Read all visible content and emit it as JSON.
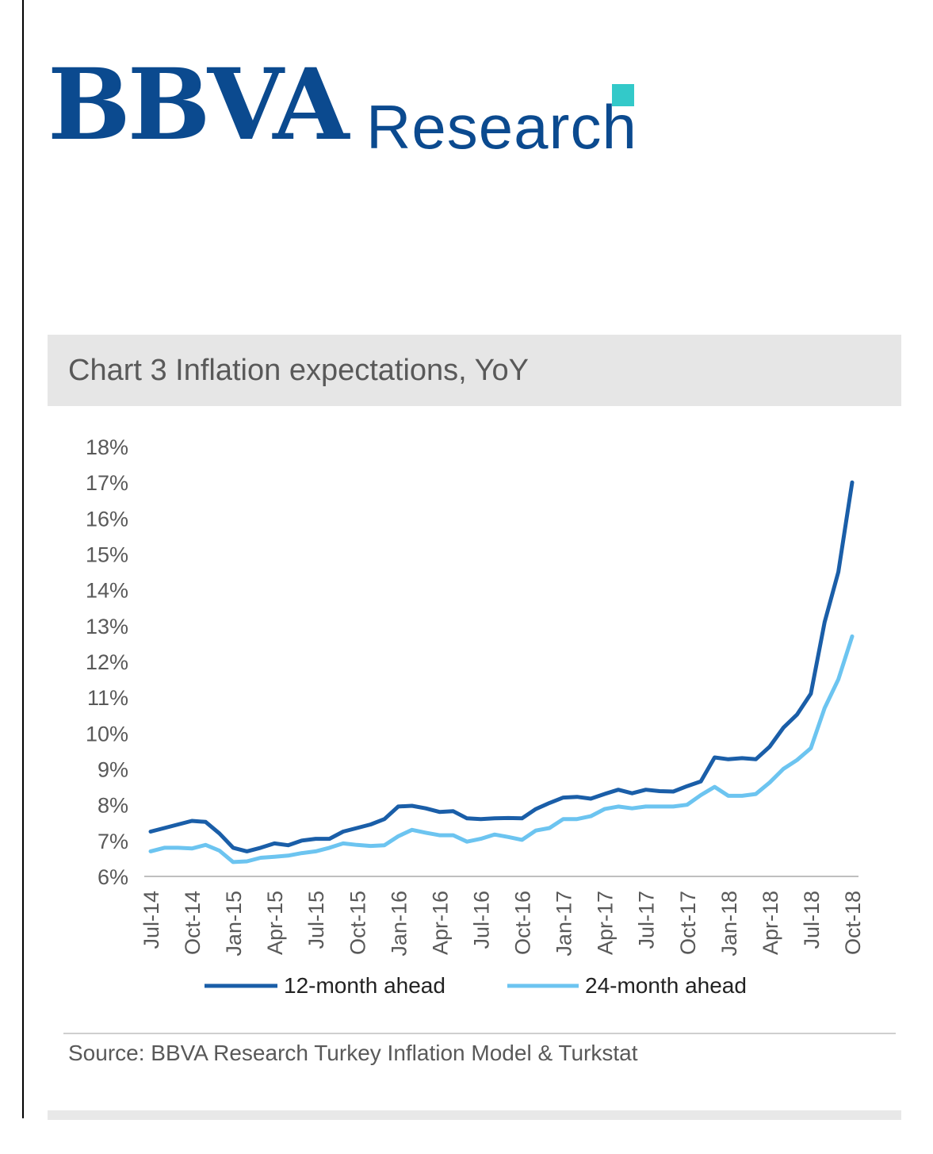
{
  "brand": {
    "name": "BBVA",
    "division": "Research",
    "primary_color": "#0b4a8f",
    "accent_color": "#33c9c9"
  },
  "chart_title": "Chart 3 Inflation expectations, YoY",
  "source": "Source: BBVA Research Turkey Inflation Model & Turkstat",
  "chart_data": {
    "type": "line",
    "title": "Chart 3 Inflation expectations, YoY",
    "xlabel": "",
    "ylabel": "",
    "ylim": [
      6,
      18
    ],
    "y_ticks": [
      "18%",
      "17%",
      "16%",
      "15%",
      "14%",
      "13%",
      "12%",
      "11%",
      "10%",
      "9%",
      "8%",
      "7%",
      "6%"
    ],
    "x_tick_labels": [
      "Jul-14",
      "Oct-14",
      "Jan-15",
      "Apr-15",
      "Jul-15",
      "Oct-15",
      "Jan-16",
      "Apr-16",
      "Jul-16",
      "Oct-16",
      "Jan-17",
      "Apr-17",
      "Jul-17",
      "Oct-17",
      "Jan-18",
      "Apr-18",
      "Jul-18",
      "Oct-18"
    ],
    "x": [
      "Jul-14",
      "Aug-14",
      "Sep-14",
      "Oct-14",
      "Nov-14",
      "Dec-14",
      "Jan-15",
      "Feb-15",
      "Mar-15",
      "Apr-15",
      "May-15",
      "Jun-15",
      "Jul-15",
      "Aug-15",
      "Sep-15",
      "Oct-15",
      "Nov-15",
      "Dec-15",
      "Jan-16",
      "Feb-16",
      "Mar-16",
      "Apr-16",
      "May-16",
      "Jun-16",
      "Jul-16",
      "Aug-16",
      "Sep-16",
      "Oct-16",
      "Nov-16",
      "Dec-16",
      "Jan-17",
      "Feb-17",
      "Mar-17",
      "Apr-17",
      "May-17",
      "Jun-17",
      "Jul-17",
      "Aug-17",
      "Sep-17",
      "Oct-17",
      "Nov-17",
      "Dec-17",
      "Jan-18",
      "Feb-18",
      "Mar-18",
      "Apr-18",
      "May-18",
      "Jun-18",
      "Jul-18",
      "Aug-18",
      "Sep-18",
      "Oct-18"
    ],
    "grid": false,
    "legend": "bottom",
    "series": [
      {
        "name": "12-month ahead",
        "color": "#1a5ea8",
        "values": [
          7.25,
          7.35,
          7.45,
          7.55,
          7.52,
          7.2,
          6.8,
          6.7,
          6.8,
          6.92,
          6.87,
          7.0,
          7.05,
          7.05,
          7.25,
          7.35,
          7.45,
          7.6,
          7.95,
          7.97,
          7.9,
          7.8,
          7.82,
          7.62,
          7.6,
          7.62,
          7.63,
          7.62,
          7.88,
          8.05,
          8.2,
          8.22,
          8.17,
          8.3,
          8.42,
          8.32,
          8.42,
          8.38,
          8.37,
          8.52,
          8.65,
          9.32,
          9.27,
          9.3,
          9.27,
          9.62,
          10.15,
          10.52,
          11.1,
          13.1,
          14.5,
          17.0
        ]
      },
      {
        "name": "24-month ahead",
        "color": "#6cc4f0",
        "values": [
          6.7,
          6.8,
          6.8,
          6.78,
          6.88,
          6.72,
          6.4,
          6.42,
          6.52,
          6.55,
          6.58,
          6.65,
          6.7,
          6.8,
          6.92,
          6.88,
          6.85,
          6.87,
          7.12,
          7.3,
          7.22,
          7.15,
          7.15,
          6.97,
          7.05,
          7.17,
          7.1,
          7.02,
          7.28,
          7.35,
          7.6,
          7.6,
          7.68,
          7.88,
          7.95,
          7.9,
          7.95,
          7.95,
          7.95,
          8.0,
          8.27,
          8.5,
          8.25,
          8.25,
          8.3,
          8.62,
          9.0,
          9.25,
          9.58,
          10.7,
          11.5,
          12.7
        ]
      }
    ]
  }
}
